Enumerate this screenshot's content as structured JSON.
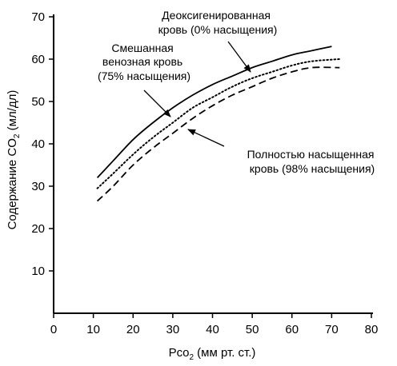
{
  "chart_data": {
    "type": "line",
    "xlabel": {
      "prefix": "Pco",
      "sub": "2",
      "suffix": " (мм рт. ст.)"
    },
    "ylabel": {
      "prefix": "Содержание CO",
      "sub": "2",
      "suffix": " (мл/дл)"
    },
    "xlim": [
      0,
      80
    ],
    "ylim": [
      0,
      70
    ],
    "x_ticks": [
      0,
      10,
      20,
      30,
      40,
      50,
      60,
      70,
      80
    ],
    "y_ticks": [
      10,
      20,
      30,
      40,
      50,
      60,
      70
    ],
    "grid": false,
    "series": [
      {
        "name": "Деоксигенированная кровь (0% насыщения)",
        "style": "solid",
        "x": [
          11,
          15,
          20,
          25,
          30,
          35,
          40,
          45,
          50,
          55,
          60,
          65,
          70
        ],
        "y": [
          32,
          36,
          41,
          45,
          48.5,
          51.5,
          54,
          56,
          58,
          59.5,
          61,
          62,
          63
        ]
      },
      {
        "name": "Смешанная венозная кровь (75% насыщения)",
        "style": "dotted",
        "x": [
          11,
          15,
          20,
          25,
          30,
          35,
          40,
          45,
          50,
          55,
          60,
          65,
          72
        ],
        "y": [
          29.5,
          33,
          37.5,
          41.5,
          45,
          48.5,
          51,
          53.5,
          55.5,
          57,
          58.5,
          59.5,
          60
        ]
      },
      {
        "name": "Полностью насыщенная кровь (98% насыщения)",
        "style": "dashed",
        "x": [
          11,
          15,
          20,
          25,
          30,
          35,
          40,
          45,
          50,
          55,
          60,
          65,
          72
        ],
        "y": [
          26.5,
          30,
          35,
          39,
          42.5,
          46,
          49,
          51.5,
          53.5,
          55.5,
          57,
          58,
          58
        ]
      }
    ],
    "annotations": [
      {
        "lines": [
          "Деоксигенированная",
          "кровь (0% насыщения)"
        ],
        "points_to_series": 0
      },
      {
        "lines": [
          "Смешанная",
          "венозная кровь",
          "(75% насыщения)"
        ],
        "points_to_series": 1
      },
      {
        "lines": [
          "Полностью насыщенная",
          "кровь (98% насыщения)"
        ],
        "points_to_series": 2
      }
    ]
  }
}
